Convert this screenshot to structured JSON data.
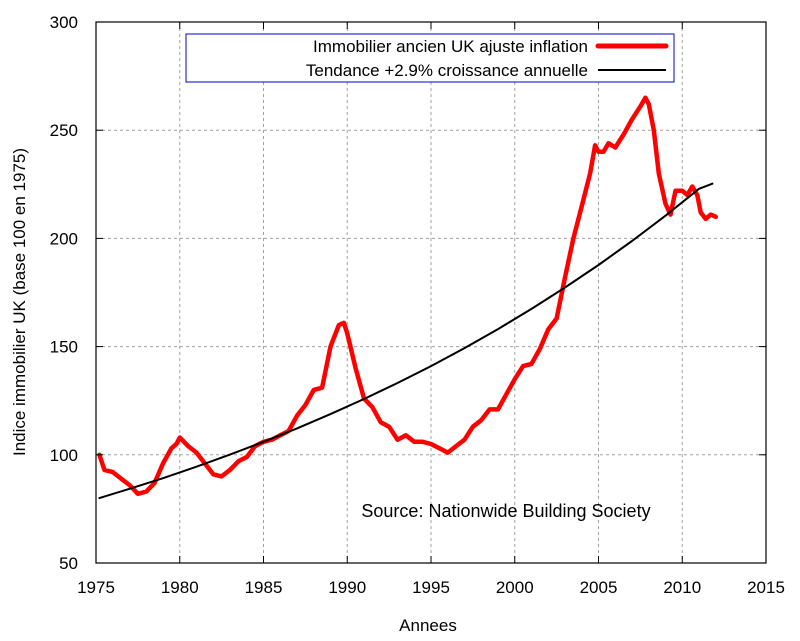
{
  "chart_data": {
    "type": "line",
    "xlabel": "Annees",
    "ylabel": "Indice immobilier UK (base 100 en 1975)",
    "xlim": [
      1975,
      2015
    ],
    "ylim": [
      50,
      300
    ],
    "x_ticks": [
      1975,
      1980,
      1985,
      1990,
      1995,
      2000,
      2005,
      2010,
      2015
    ],
    "y_ticks": [
      50,
      100,
      150,
      200,
      250,
      300
    ],
    "grid": true,
    "legend_position": "top-center",
    "annotation": "Source: Nationwide Building Society",
    "series": [
      {
        "name": "Immobilier ancien UK ajuste inflation",
        "color": "#ff0000",
        "style": "thick",
        "x": [
          1975.2,
          1975.5,
          1976.0,
          1976.5,
          1977.0,
          1977.5,
          1978.0,
          1978.5,
          1979.0,
          1979.5,
          1979.8,
          1980.0,
          1980.5,
          1981.0,
          1981.5,
          1982.0,
          1982.5,
          1983.0,
          1983.5,
          1984.0,
          1984.5,
          1985.0,
          1985.5,
          1986.0,
          1986.5,
          1987.0,
          1987.5,
          1988.0,
          1988.5,
          1989.0,
          1989.5,
          1989.8,
          1990.0,
          1990.5,
          1991.0,
          1991.5,
          1992.0,
          1992.5,
          1993.0,
          1993.5,
          1994.0,
          1994.5,
          1995.0,
          1995.5,
          1996.0,
          1996.5,
          1997.0,
          1997.5,
          1998.0,
          1998.5,
          1999.0,
          1999.5,
          2000.0,
          2000.5,
          2001.0,
          2001.5,
          2002.0,
          2002.5,
          2003.0,
          2003.5,
          2004.0,
          2004.5,
          2004.8,
          2005.0,
          2005.3,
          2005.6,
          2006.0,
          2006.5,
          2007.0,
          2007.5,
          2007.8,
          2008.0,
          2008.3,
          2008.6,
          2009.0,
          2009.3,
          2009.6,
          2010.0,
          2010.3,
          2010.6,
          2010.9,
          2011.1,
          2011.4,
          2011.7,
          2012.0
        ],
        "values": [
          100,
          93,
          92,
          89,
          86,
          82,
          83,
          87,
          96,
          103,
          105,
          108,
          104,
          101,
          96,
          91,
          90,
          93,
          97,
          99,
          104,
          106,
          107,
          109,
          111,
          118,
          123,
          130,
          131,
          150,
          160,
          161,
          156,
          140,
          126,
          122,
          115,
          113,
          107,
          109,
          106,
          106,
          105,
          103,
          101,
          104,
          107,
          113,
          116,
          121,
          121,
          128,
          135,
          141,
          142,
          149,
          158,
          163,
          182,
          200,
          215,
          230,
          243,
          240,
          240,
          244,
          242,
          248,
          255,
          261,
          265,
          262,
          250,
          230,
          216,
          211,
          222,
          222,
          220,
          224,
          220,
          212,
          209,
          211,
          210
        ]
      },
      {
        "name": "Tendance +2.9% croissance annuelle",
        "color": "#000000",
        "style": "thin",
        "x": [
          1975.2,
          1977,
          1979,
          1981,
          1983,
          1985,
          1987,
          1989,
          1991,
          1993,
          1995,
          1997,
          1999,
          2001,
          2003,
          2005,
          2007,
          2009,
          2011,
          2011.8
        ],
        "values": [
          80.0,
          84.3,
          89.2,
          94.5,
          100.1,
          106.0,
          112.2,
          118.8,
          125.8,
          133.2,
          141.0,
          149.3,
          158.1,
          167.4,
          177.3,
          187.7,
          198.8,
          210.5,
          222.9,
          225.3
        ]
      }
    ]
  }
}
